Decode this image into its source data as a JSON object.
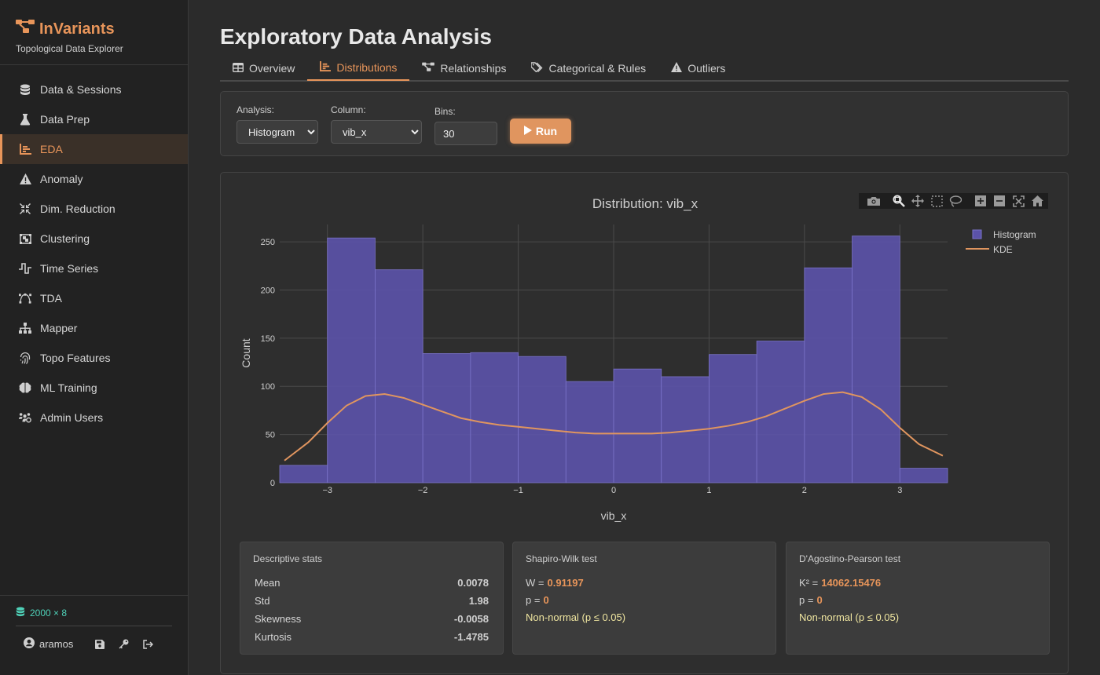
{
  "app": {
    "name": "InVariants",
    "subtitle": "Topological Data Explorer"
  },
  "sidebar": {
    "items": [
      {
        "label": "Data & Sessions",
        "icon": "database-icon",
        "active": false
      },
      {
        "label": "Data Prep",
        "icon": "flask-icon",
        "active": false
      },
      {
        "label": "EDA",
        "icon": "chart-bar-icon",
        "active": true
      },
      {
        "label": "Anomaly",
        "icon": "warning-icon",
        "active": false
      },
      {
        "label": "Dim. Reduction",
        "icon": "compress-icon",
        "active": false
      },
      {
        "label": "Clustering",
        "icon": "object-group-icon",
        "active": false
      },
      {
        "label": "Time Series",
        "icon": "wave-square-icon",
        "active": false
      },
      {
        "label": "TDA",
        "icon": "bezier-icon",
        "active": false
      },
      {
        "label": "Mapper",
        "icon": "sitemap-icon",
        "active": false
      },
      {
        "label": "Topo Features",
        "icon": "fingerprint-icon",
        "active": false
      },
      {
        "label": "ML Training",
        "icon": "brain-icon",
        "active": false
      },
      {
        "label": "Admin Users",
        "icon": "users-cog-icon",
        "active": false
      }
    ],
    "dataset": "2000 × 8",
    "user": "aramos"
  },
  "page": {
    "title": "Exploratory Data Analysis",
    "tabs": [
      {
        "label": "Overview",
        "icon": "table-icon",
        "active": false
      },
      {
        "label": "Distributions",
        "icon": "chart-bar-icon",
        "active": true
      },
      {
        "label": "Relationships",
        "icon": "project-diagram-icon",
        "active": false
      },
      {
        "label": "Categorical & Rules",
        "icon": "tags-icon",
        "active": false
      },
      {
        "label": "Outliers",
        "icon": "warning-icon",
        "active": false
      }
    ]
  },
  "controls": {
    "analysis_label": "Analysis:",
    "analysis_value": "Histogram",
    "column_label": "Column:",
    "column_value": "vib_x",
    "bins_label": "Bins:",
    "bins_value": "30",
    "run_label": "Run"
  },
  "chart_data": {
    "type": "bar",
    "title": "Distribution: vib_x",
    "xlabel": "vib_x",
    "ylabel": "Count",
    "xlim": [
      -3.5,
      3.5
    ],
    "ylim": [
      0,
      268
    ],
    "xticks": [
      -3,
      -2,
      -1,
      0,
      1,
      2,
      3
    ],
    "xtick_labels": [
      "−3",
      "−2",
      "−1",
      "0",
      "1",
      "2",
      "3"
    ],
    "yticks": [
      0,
      50,
      100,
      150,
      200,
      250
    ],
    "legend": [
      "Histogram",
      "KDE"
    ],
    "legend_position": "top-right",
    "grid": true,
    "histogram": {
      "name": "Histogram",
      "color": "#5b52a8",
      "bin_edges": [
        -3.5,
        -3.0,
        -2.5,
        -2.0,
        -1.5,
        -1.0,
        -0.5,
        0.0,
        0.5,
        1.0,
        1.5,
        2.0,
        2.5,
        3.0,
        3.5
      ],
      "counts": [
        18,
        254,
        221,
        134,
        135,
        131,
        105,
        118,
        110,
        133,
        147,
        223,
        256,
        15
      ]
    },
    "kde": {
      "name": "KDE",
      "color": "#e0955f",
      "x": [
        -3.45,
        -3.2,
        -3.0,
        -2.8,
        -2.6,
        -2.4,
        -2.2,
        -2.0,
        -1.8,
        -1.6,
        -1.4,
        -1.2,
        -1.0,
        -0.8,
        -0.6,
        -0.4,
        -0.2,
        0.0,
        0.2,
        0.4,
        0.6,
        0.8,
        1.0,
        1.2,
        1.4,
        1.6,
        1.8,
        2.0,
        2.2,
        2.4,
        2.6,
        2.8,
        3.0,
        3.2,
        3.45
      ],
      "y": [
        23,
        42,
        62,
        80,
        90,
        92,
        88,
        81,
        74,
        67,
        63,
        60,
        58,
        56,
        54,
        52,
        51,
        51,
        51,
        51,
        52,
        54,
        56,
        59,
        63,
        69,
        77,
        85,
        92,
        94,
        89,
        76,
        57,
        40,
        28
      ]
    }
  },
  "stats": {
    "descriptive": {
      "title": "Descriptive stats",
      "rows": [
        {
          "k": "Mean",
          "v": "0.0078"
        },
        {
          "k": "Std",
          "v": "1.98"
        },
        {
          "k": "Skewness",
          "v": "-0.0058"
        },
        {
          "k": "Kurtosis",
          "v": "-1.4785"
        }
      ]
    },
    "shapiro": {
      "title": "Shapiro-Wilk test",
      "w_label": "W =",
      "w": "0.91197",
      "p_label": "p =",
      "p": "0",
      "verdict": "Non-normal (p ≤ 0.05)"
    },
    "dagostino": {
      "title": "D'Agostino-Pearson test",
      "k_label": "K² =",
      "k": "14062.15476",
      "p_label": "p =",
      "p": "0",
      "verdict": "Non-normal (p ≤ 0.05)"
    }
  }
}
